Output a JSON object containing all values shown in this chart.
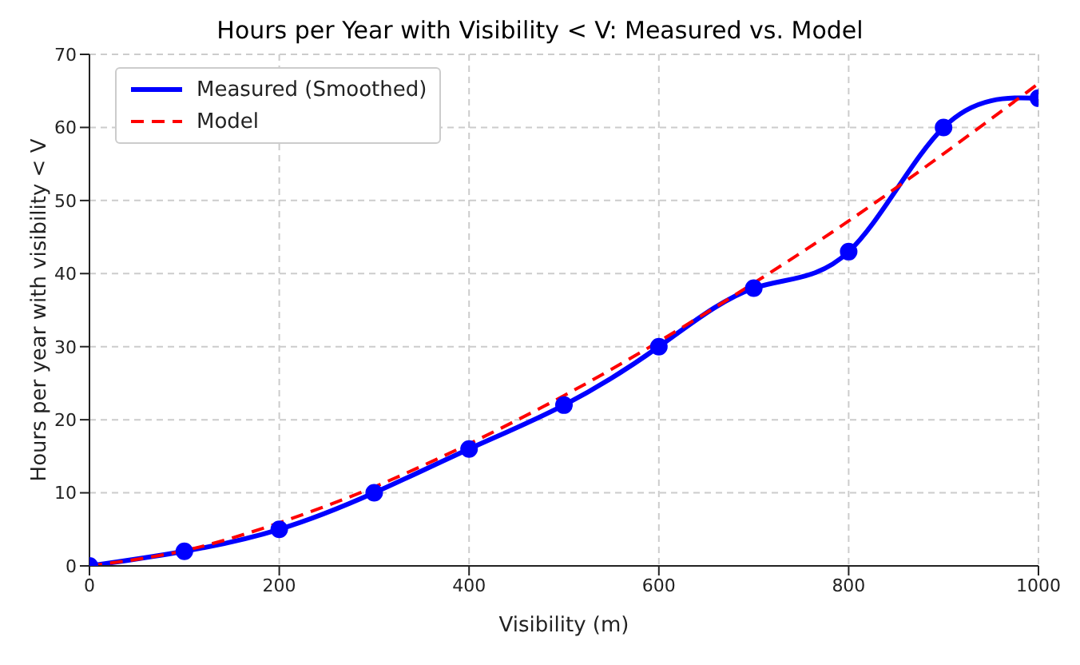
{
  "chart_data": {
    "type": "line",
    "title": "Hours per Year with Visibility < V: Measured vs. Model",
    "xlabel": "Visibility (m)",
    "ylabel": "Hours per year with visibility < V",
    "x": [
      0,
      100,
      200,
      300,
      400,
      500,
      600,
      700,
      800,
      900,
      1000
    ],
    "series": [
      {
        "name": "Measured (Smoothed)",
        "color": "#0000ff",
        "values": [
          0,
          2,
          5,
          10,
          16,
          22,
          30,
          38,
          43,
          60,
          64
        ],
        "marker": "circle",
        "line_style": "solid"
      },
      {
        "name": "Model",
        "color": "#ff0000",
        "values": [
          0,
          2.1,
          5.9,
          10.8,
          16.7,
          23.3,
          30.7,
          38.7,
          47.2,
          56.4,
          66
        ],
        "marker": "none",
        "line_style": "dashed"
      }
    ],
    "xlim": [
      0,
      1000
    ],
    "xticks": [
      0,
      200,
      400,
      600,
      800,
      1000
    ],
    "ylim": [
      0,
      70
    ],
    "yticks": [
      0,
      10,
      20,
      30,
      40,
      50,
      60,
      70
    ],
    "grid": true,
    "legend": "top left"
  }
}
